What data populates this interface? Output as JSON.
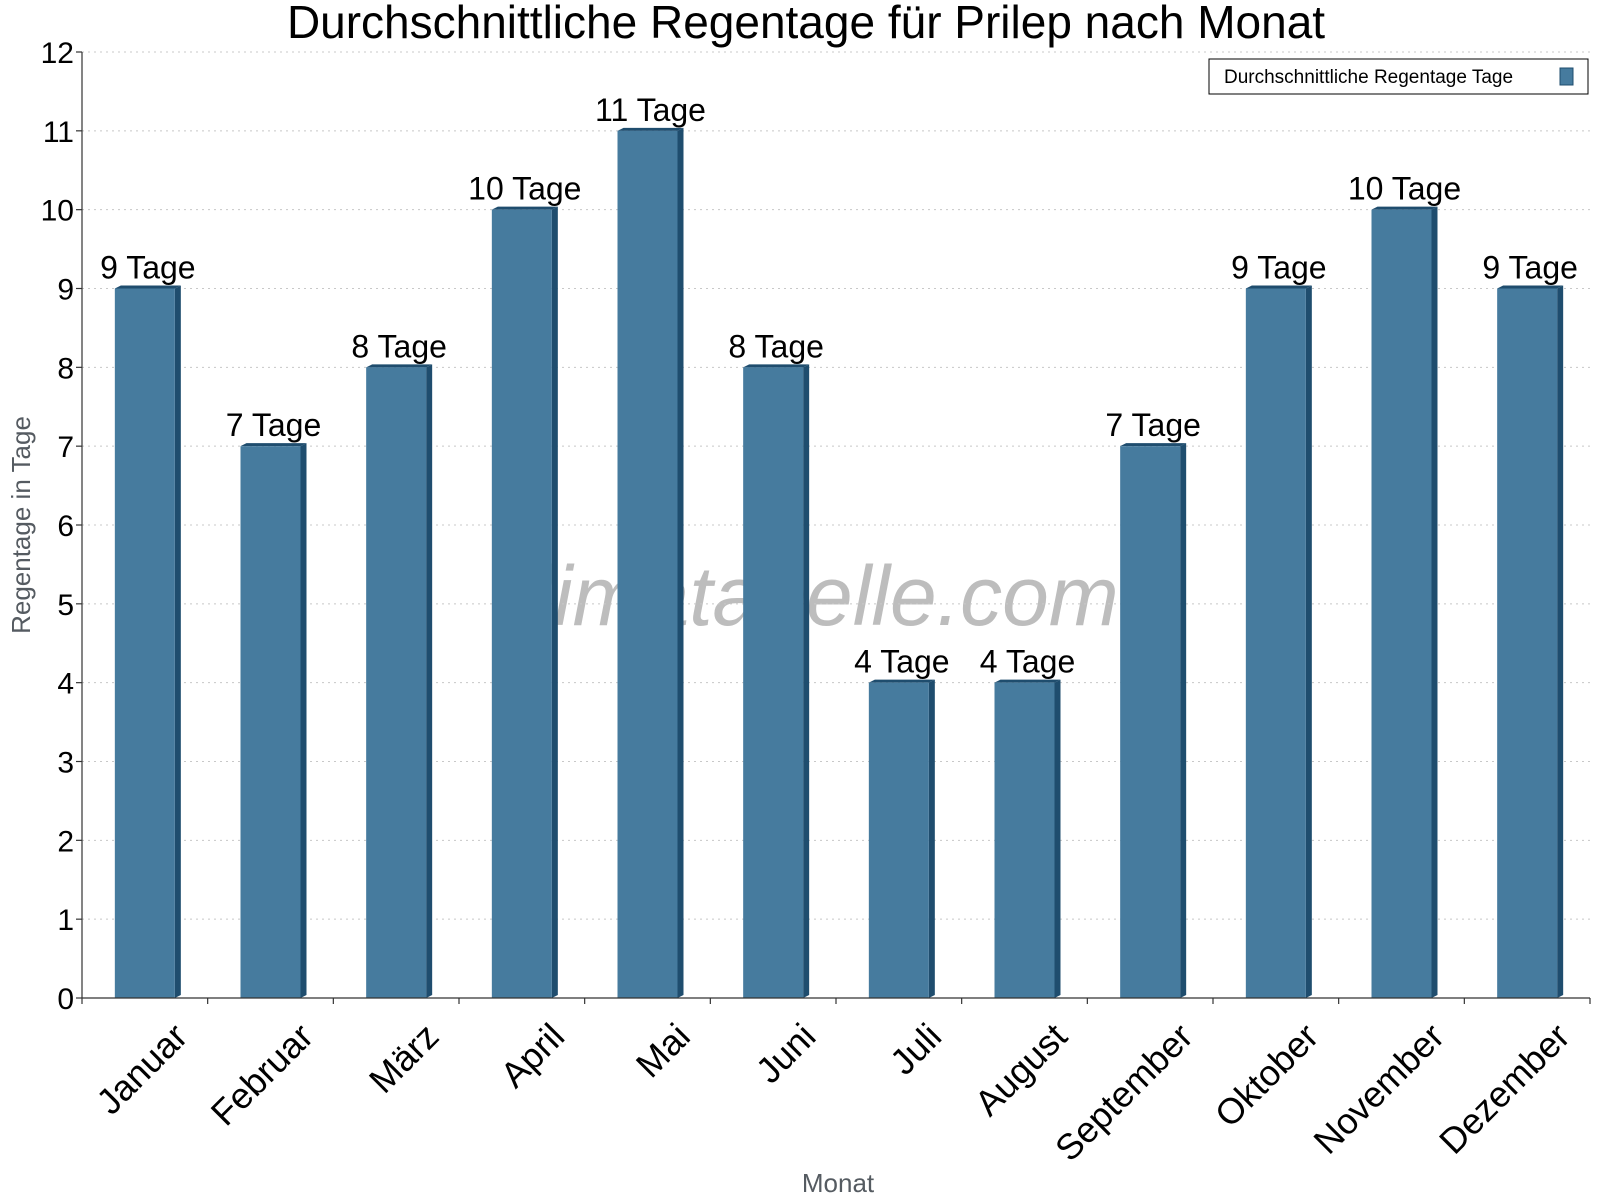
{
  "chart_data": {
    "type": "bar",
    "title": "Durchschnittliche Regentage für Prilep nach Monat",
    "xlabel": "Monat",
    "ylabel": "Regentage in Tage",
    "ylim": [
      0,
      12
    ],
    "yticks": [
      0,
      1,
      2,
      3,
      4,
      5,
      6,
      7,
      8,
      9,
      10,
      11,
      12
    ],
    "grid": true,
    "legend_position": "top-right",
    "watermark": "klimatabelle.com",
    "bar_color": "#467b9e",
    "bar_side_color": "#1f4d6e",
    "categories": [
      "Januar",
      "Februar",
      "März",
      "April",
      "Mai",
      "Juni",
      "Juli",
      "August",
      "September",
      "Oktober",
      "November",
      "Dezember"
    ],
    "series": [
      {
        "name": "Durchschnittliche Regentage Tage",
        "values": [
          9,
          7,
          8,
          10,
          11,
          8,
          4,
          4,
          7,
          9,
          10,
          9
        ],
        "labels": [
          "9 Tage",
          "7 Tage",
          "8 Tage",
          "10 Tage",
          "11 Tage",
          "8 Tage",
          "4 Tage",
          "4 Tage",
          "7 Tage",
          "9 Tage",
          "10 Tage",
          "9 Tage"
        ]
      }
    ]
  }
}
